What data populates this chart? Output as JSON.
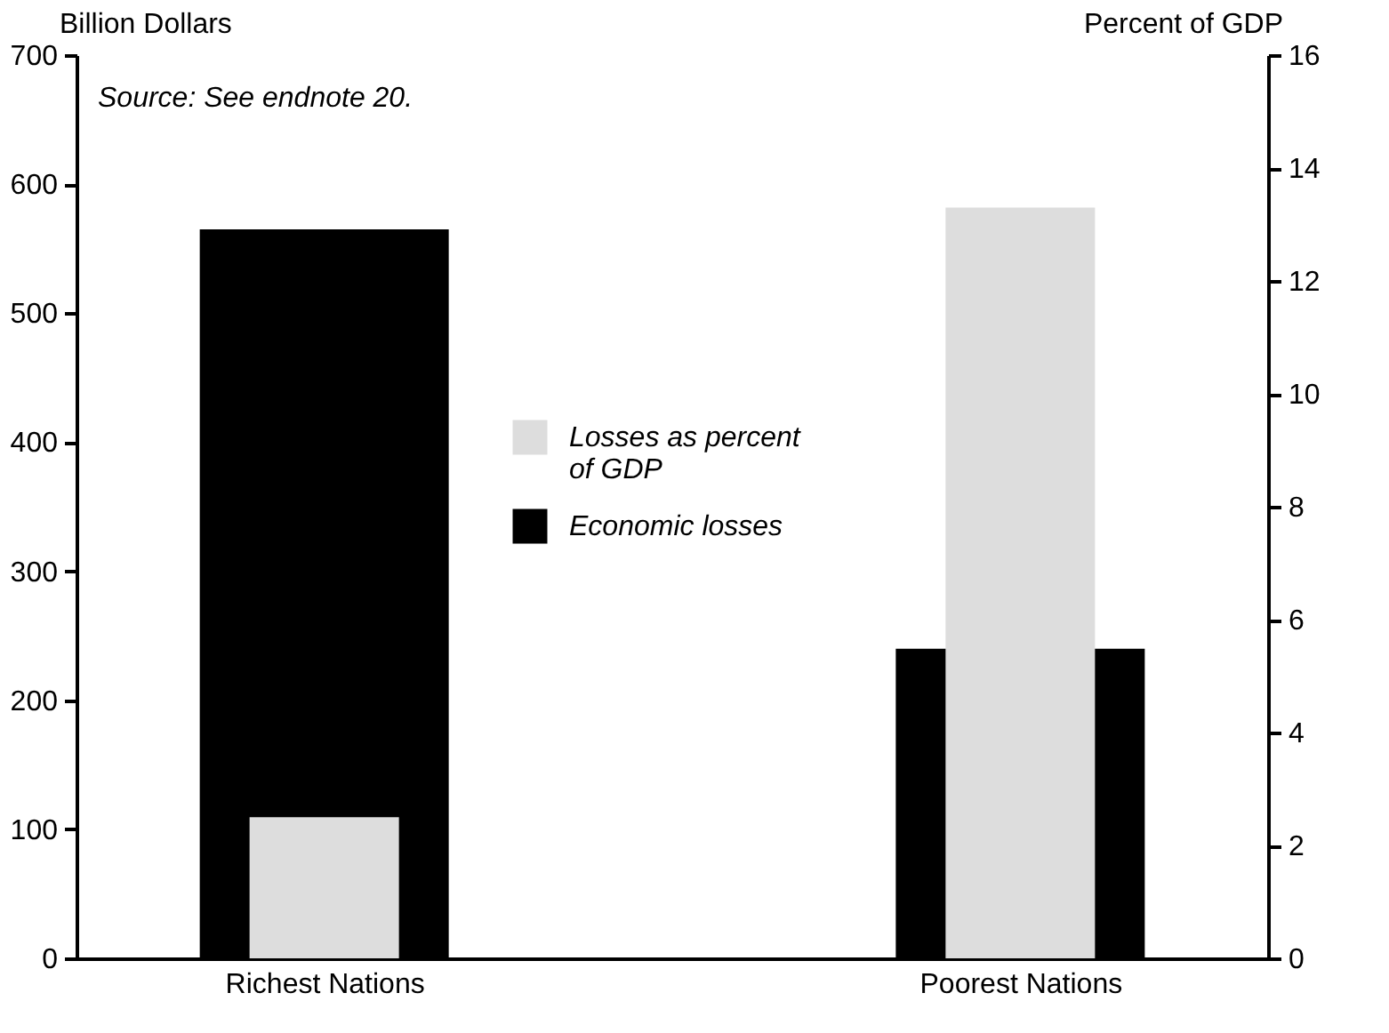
{
  "chart_data": {
    "type": "bar",
    "categories": [
      "Richest Nations",
      "Poorest Nations"
    ],
    "ylabel": "Billion Dollars",
    "y2label": "Percent of GDP",
    "ylim": [
      0,
      700
    ],
    "yticks": [
      0,
      100,
      200,
      300,
      400,
      500,
      600,
      700
    ],
    "y2lim": [
      0,
      16
    ],
    "y2ticks": [
      0,
      2,
      4,
      6,
      8,
      10,
      12,
      14,
      16
    ],
    "annotations": [
      "Source: See endnote 20."
    ],
    "legend": "center",
    "grid": false,
    "series": [
      {
        "name": "Losses as percent of GDP",
        "color": "#dddddd",
        "values": [
          2.5,
          13.3
        ],
        "axis": "y2"
      },
      {
        "name": "Economic losses",
        "color": "#000000",
        "values": [
          565,
          240
        ]
      }
    ]
  }
}
